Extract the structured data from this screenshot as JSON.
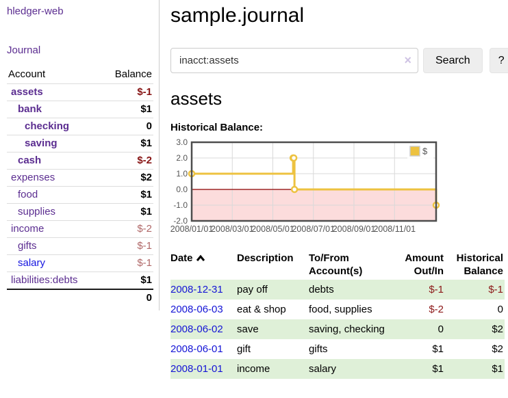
{
  "app": {
    "title": "hledger-web"
  },
  "sidebar": {
    "journal_link": "Journal",
    "accounts_table": {
      "headers": {
        "account": "Account",
        "balance": "Balance"
      },
      "rows": [
        {
          "name": "assets",
          "depth": 1,
          "bold": true,
          "link_color": "purple",
          "balance": "$-1",
          "balance_style": "neg-strong"
        },
        {
          "name": "bank",
          "depth": 2,
          "bold": true,
          "link_color": "purple",
          "balance": "$1",
          "balance_style": "pos"
        },
        {
          "name": "checking",
          "depth": 3,
          "bold": true,
          "link_color": "purple",
          "balance": "0",
          "balance_style": "pos"
        },
        {
          "name": "saving",
          "depth": 3,
          "bold": true,
          "link_color": "purple",
          "balance": "$1",
          "balance_style": "pos"
        },
        {
          "name": "cash",
          "depth": 2,
          "bold": true,
          "link_color": "purple",
          "balance": "$-2",
          "balance_style": "neg-strong"
        },
        {
          "name": "expenses",
          "depth": 1,
          "bold": false,
          "link_color": "purple",
          "balance": "$2",
          "balance_style": "pos"
        },
        {
          "name": "food",
          "depth": 2,
          "bold": false,
          "link_color": "purple",
          "balance": "$1",
          "balance_style": "pos"
        },
        {
          "name": "supplies",
          "depth": 2,
          "bold": false,
          "link_color": "purple",
          "balance": "$1",
          "balance_style": "pos"
        },
        {
          "name": "income",
          "depth": 1,
          "bold": false,
          "link_color": "purple",
          "balance": "$-2",
          "balance_style": "neg-soft"
        },
        {
          "name": "gifts",
          "depth": 2,
          "bold": false,
          "link_color": "purple",
          "balance": "$-1",
          "balance_style": "neg-soft"
        },
        {
          "name": "salary",
          "depth": 2,
          "bold": false,
          "link_color": "blue",
          "balance": "$-1",
          "balance_style": "neg-soft"
        },
        {
          "name": "liabilities:debts",
          "depth": 1,
          "bold": false,
          "link_color": "purple",
          "balance": "$1",
          "balance_style": "pos"
        }
      ],
      "total": "0"
    }
  },
  "header": {
    "title": "sample.journal"
  },
  "search": {
    "value": "inacct:assets",
    "clear_icon": "×",
    "button_label": "Search",
    "help_label": "?"
  },
  "register": {
    "account_heading": "assets",
    "chart_title": "Historical Balance:",
    "table": {
      "headers": {
        "date": "Date",
        "description": "Description",
        "accounts": "To/From Account(s)",
        "amount": "Amount Out/In",
        "balance": "Historical Balance"
      },
      "sort": {
        "column": "date",
        "direction": "ascending"
      },
      "rows": [
        {
          "date": "2008-12-31",
          "description": "pay off",
          "accounts": "debts",
          "amount": "$-1",
          "amount_negative": true,
          "balance": "$-1",
          "balance_negative": true
        },
        {
          "date": "2008-06-03",
          "description": "eat & shop",
          "accounts": "food, supplies",
          "amount": "$-2",
          "amount_negative": true,
          "balance": "0",
          "balance_negative": false
        },
        {
          "date": "2008-06-02",
          "description": "save",
          "accounts": "saving, checking",
          "amount": "0",
          "amount_negative": false,
          "balance": "$2",
          "balance_negative": false
        },
        {
          "date": "2008-06-01",
          "description": "gift",
          "accounts": "gifts",
          "amount": "$1",
          "amount_negative": false,
          "balance": "$2",
          "balance_negative": false
        },
        {
          "date": "2008-01-01",
          "description": "income",
          "accounts": "salary",
          "amount": "$1",
          "amount_negative": false,
          "balance": "$1",
          "balance_negative": false
        }
      ]
    }
  },
  "chart_data": {
    "type": "line",
    "title": "Historical Balance:",
    "steps": true,
    "series": [
      {
        "name": "$",
        "color": "#edc240",
        "point_dates": [
          "2008-01-01",
          "2008-06-01",
          "2008-06-02",
          "2008-06-03",
          "2008-12-31"
        ],
        "x_months": [
          0,
          5.0,
          5.033,
          5.067,
          12.05
        ],
        "values": [
          1,
          2,
          2,
          0,
          -1
        ]
      }
    ],
    "xlim_months": [
      0,
      12.05
    ],
    "ylim": [
      -2,
      3
    ],
    "x_ticks": [
      {
        "pos": 0,
        "label": "2008/01/01"
      },
      {
        "pos": 2,
        "label": "2008/03/01"
      },
      {
        "pos": 4,
        "label": "2008/05/01"
      },
      {
        "pos": 6,
        "label": "2008/07/01"
      },
      {
        "pos": 8,
        "label": "2008/09/01"
      },
      {
        "pos": 10,
        "label": "2008/11/01"
      }
    ],
    "y_ticks": [
      {
        "pos": 3,
        "label": "3.0"
      },
      {
        "pos": 2,
        "label": "2.0"
      },
      {
        "pos": 1,
        "label": "1.0"
      },
      {
        "pos": 0,
        "label": "0.0"
      },
      {
        "pos": -1,
        "label": "-1.0"
      },
      {
        "pos": -2,
        "label": "-2.0"
      }
    ],
    "legend": {
      "label": "$",
      "position": "top-right"
    },
    "grid": true,
    "colors": {
      "line": "#edc240",
      "marker_fill": "#ffffff",
      "negative_region_fill": "#fcdcdc",
      "zero_line": "#8b0000",
      "gridline": "#d9d9d9",
      "border": "#4d4d4d",
      "axis_text": "#545454"
    }
  }
}
